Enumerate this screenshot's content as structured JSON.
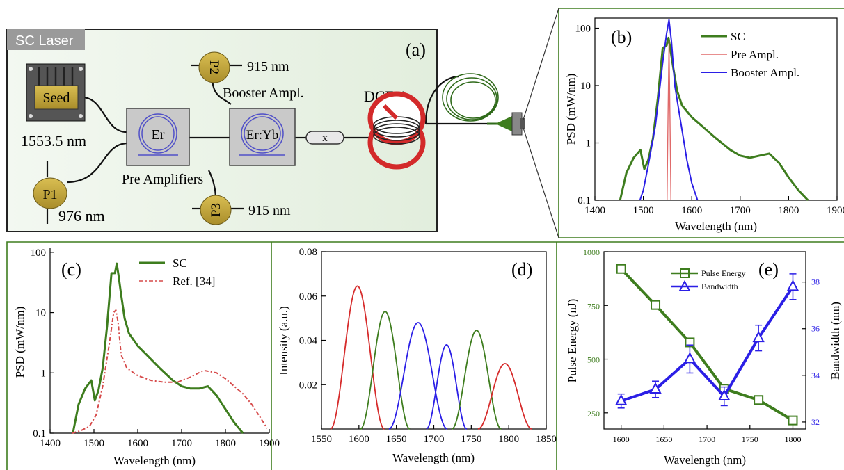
{
  "colors": {
    "green": "#3e7d1e",
    "red": "#d62b2b",
    "blue": "#2b1fe6",
    "orange": "#d64a4a",
    "panel_bg": "#eaf3e6",
    "gold": "#c4a63c"
  },
  "panel_a": {
    "label": "(a)",
    "title": "SC Laser",
    "seed_label": "Seed",
    "seed_wavelength": "1553.5 nm",
    "er_label": "Er",
    "eryb_label": "Er:Yb",
    "pre_amplifiers_label": "Pre Amplifiers",
    "booster_label": "Booster Ampl.",
    "dcf_label": "DCF 4",
    "isolator_label": "x",
    "p1_label": "P1",
    "p1_wavelength": "976 nm",
    "p2_label": "P2",
    "p2_wavelength": "915 nm",
    "p3_label": "P3",
    "p3_wavelength": "915 nm"
  },
  "chart_data": [
    {
      "id": "b",
      "panel_label": "(b)",
      "type": "line",
      "xlabel": "Wavelength (nm)",
      "ylabel": "PSD (mW/nm)",
      "xlim": [
        1400,
        1900
      ],
      "ylim": [
        0.1,
        150
      ],
      "yscale": "log",
      "xticks": [
        1400,
        1500,
        1600,
        1700,
        1800,
        1900
      ],
      "yticks": [
        0.1,
        1,
        10,
        100
      ],
      "ytick_labels": [
        "0.1",
        "1",
        "10",
        "100"
      ],
      "legend": "top-right",
      "series": [
        {
          "name": "SC",
          "color": "#3e7d1e",
          "x": [
            1452,
            1465,
            1480,
            1494,
            1502,
            1510,
            1520,
            1530,
            1540,
            1548,
            1552,
            1556,
            1562,
            1570,
            1580,
            1600,
            1620,
            1650,
            1680,
            1700,
            1720,
            1740,
            1760,
            1780,
            1800,
            1820,
            1840
          ],
          "y": [
            0.1,
            0.3,
            0.55,
            0.75,
            0.35,
            0.5,
            1.2,
            6,
            45,
            50,
            68,
            42,
            20,
            8,
            4.5,
            2.8,
            2.0,
            1.2,
            0.75,
            0.6,
            0.55,
            0.6,
            0.65,
            0.45,
            0.25,
            0.15,
            0.1
          ]
        },
        {
          "name": "Pre Ampl.",
          "color": "#e06a6a",
          "x": [
            1549,
            1551,
            1553,
            1555,
            1557
          ],
          "y": [
            0.1,
            3,
            60,
            3,
            0.1
          ]
        },
        {
          "name": "Booster Ampl.",
          "color": "#2b1fe6",
          "x": [
            1493,
            1500,
            1510,
            1525,
            1540,
            1548,
            1553,
            1558,
            1565,
            1575,
            1590,
            1600,
            1612
          ],
          "y": [
            0.1,
            0.15,
            0.4,
            2,
            25,
            80,
            140,
            60,
            10,
            3,
            0.5,
            0.2,
            0.1
          ]
        }
      ]
    },
    {
      "id": "c",
      "panel_label": "(c)",
      "type": "line",
      "xlabel": "Wavelength (nm)",
      "ylabel": "PSD (mW/nm)",
      "xlim": [
        1400,
        1900
      ],
      "ylim": [
        0.1,
        120
      ],
      "yscale": "log",
      "xticks": [
        1400,
        1500,
        1600,
        1700,
        1800,
        1900
      ],
      "yticks": [
        0.1,
        1,
        10,
        100
      ],
      "ytick_labels": [
        "0.1",
        "1",
        "10",
        "100"
      ],
      "legend": "top-right",
      "series": [
        {
          "name": "SC",
          "color": "#3e7d1e",
          "x": [
            1452,
            1465,
            1480,
            1494,
            1502,
            1510,
            1520,
            1530,
            1540,
            1548,
            1552,
            1556,
            1562,
            1570,
            1580,
            1600,
            1620,
            1650,
            1680,
            1700,
            1720,
            1740,
            1760,
            1780,
            1800,
            1820,
            1840
          ],
          "y": [
            0.1,
            0.3,
            0.55,
            0.75,
            0.35,
            0.5,
            1.2,
            6,
            45,
            45,
            65,
            42,
            20,
            8,
            4.5,
            2.8,
            2.0,
            1.2,
            0.75,
            0.6,
            0.55,
            0.55,
            0.6,
            0.42,
            0.25,
            0.15,
            0.1
          ]
        },
        {
          "name": "Ref. [34]",
          "color": "#d64a4a",
          "x": [
            1450,
            1470,
            1490,
            1505,
            1520,
            1535,
            1545,
            1550,
            1555,
            1562,
            1575,
            1600,
            1630,
            1660,
            1690,
            1720,
            1750,
            1780,
            1800,
            1820,
            1840,
            1860,
            1880,
            1895
          ],
          "y": [
            0.1,
            0.11,
            0.13,
            0.2,
            0.6,
            3,
            10,
            11,
            7,
            2,
            1.2,
            0.9,
            0.75,
            0.7,
            0.7,
            0.85,
            1.1,
            1.0,
            0.8,
            0.6,
            0.45,
            0.3,
            0.18,
            0.12
          ]
        }
      ]
    },
    {
      "id": "d",
      "panel_label": "(d)",
      "type": "line",
      "xlabel": "Wavelength (nm)",
      "ylabel": "Intensity (a.u.)",
      "xlim": [
        1550,
        1850
      ],
      "ylim": [
        0,
        0.08
      ],
      "xticks": [
        1550,
        1600,
        1650,
        1700,
        1750,
        1800,
        1850
      ],
      "yticks": [
        0.02,
        0.04,
        0.06,
        0.08
      ],
      "ytick_labels": [
        "0.02",
        "0.04",
        "0.06",
        "0.08"
      ],
      "series": [
        {
          "color": "#d62b2b",
          "center": 1598,
          "amplitude": 0.0645,
          "halfwidth": 36
        },
        {
          "color": "#3e7d1e",
          "center": 1635,
          "amplitude": 0.053,
          "halfwidth": 33
        },
        {
          "color": "#2b1fe6",
          "center": 1679,
          "amplitude": 0.048,
          "halfwidth": 39
        },
        {
          "color": "#2b1fe6",
          "center": 1717,
          "amplitude": 0.038,
          "halfwidth": 27
        },
        {
          "color": "#3e7d1e",
          "center": 1757,
          "amplitude": 0.0445,
          "halfwidth": 33
        },
        {
          "color": "#d62b2b",
          "center": 1795,
          "amplitude": 0.0295,
          "halfwidth": 36
        }
      ]
    },
    {
      "id": "e",
      "panel_label": "(e)",
      "type": "line",
      "xlabel": "Wavelength (nm)",
      "ylabel": "Pulse Energy (nJ)",
      "y2label": "Bandwidth (nm)",
      "xlim": [
        1580,
        1815
      ],
      "ylim": [
        175,
        1000
      ],
      "y2lim": [
        31.7,
        39.3
      ],
      "xticks": [
        1600,
        1650,
        1700,
        1750,
        1800
      ],
      "yticks": [
        250,
        500,
        750,
        1000
      ],
      "ytick_labels": [
        "250",
        "500",
        "750",
        "1000"
      ],
      "y2ticks": [
        32,
        34,
        36,
        38
      ],
      "y2tick_labels": [
        "32",
        "34",
        "36",
        "38"
      ],
      "legend": "top-center",
      "series": [
        {
          "name": "Pulse Energy",
          "color": "#3e7d1e",
          "marker": "square",
          "axis": "left",
          "x": [
            1600,
            1640,
            1680,
            1720,
            1760,
            1800
          ],
          "y": [
            920,
            752,
            578,
            362,
            310,
            215
          ]
        },
        {
          "name": "Bandwidth",
          "color": "#2b1fe6",
          "marker": "triangle",
          "axis": "right",
          "x": [
            1600,
            1640,
            1680,
            1720,
            1760,
            1800
          ],
          "y": [
            32.9,
            33.4,
            34.7,
            33.1,
            35.6,
            37.8
          ],
          "err": [
            0.3,
            0.35,
            0.6,
            0.4,
            0.55,
            0.55
          ]
        }
      ]
    }
  ]
}
